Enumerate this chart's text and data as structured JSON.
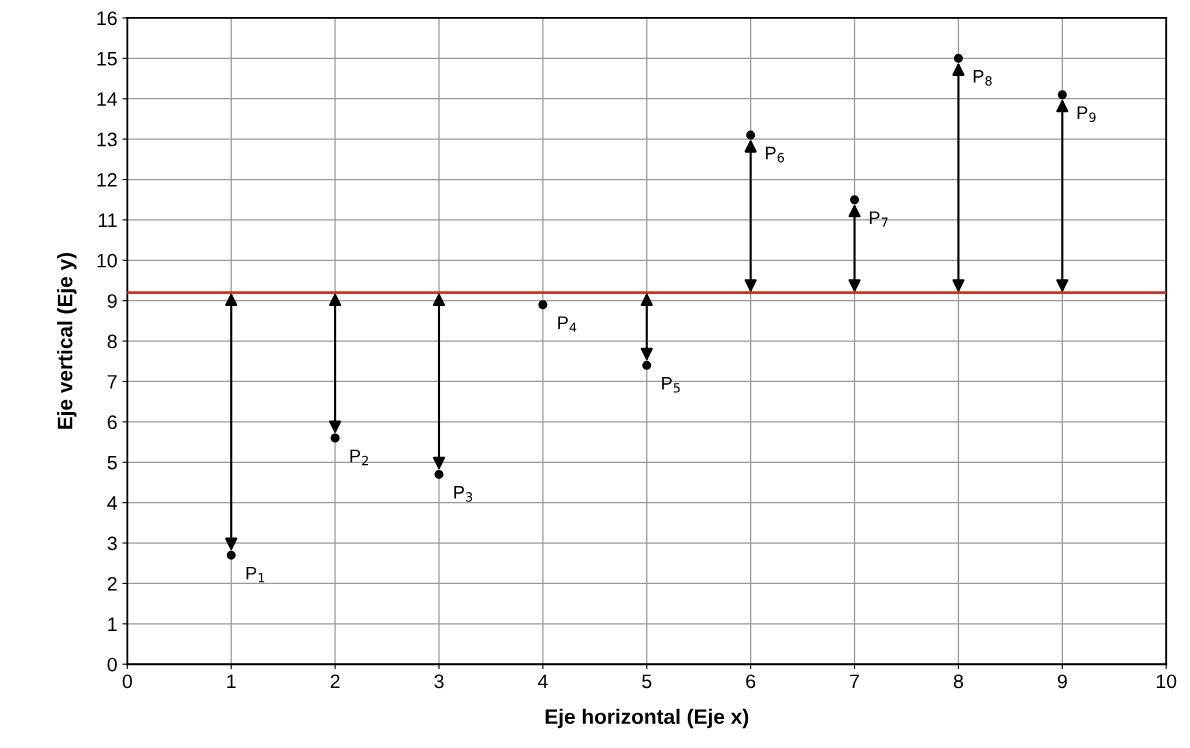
{
  "chart_data": {
    "type": "scatter",
    "xlabel": "Eje horizontal (Eje x)",
    "ylabel": "Eje vertical (Eje y)",
    "x": [
      1,
      2,
      3,
      4,
      5,
      6,
      7,
      8,
      9
    ],
    "series": [
      {
        "color": "#000000",
        "values": [
          2.7,
          5.6,
          4.7,
          8.9,
          7.4,
          13.1,
          11.5,
          15,
          14.1
        ]
      }
    ],
    "marker": "circle",
    "grid": true,
    "xlim": [
      0,
      10
    ],
    "xticks": [
      0,
      1,
      2,
      3,
      4,
      5,
      6,
      7,
      8,
      9,
      10
    ],
    "ylim": [
      0,
      16
    ],
    "yticks": [
      0,
      1,
      2,
      3,
      4,
      5,
      6,
      7,
      8,
      9,
      10,
      11,
      12,
      13,
      14,
      15,
      16
    ],
    "ref_lines": [
      {
        "axis": "y",
        "value": 9.2,
        "color": "#c0392b"
      }
    ],
    "annotations": [
      {
        "text": "P$_{1}$",
        "x": 1,
        "y": 2.7
      },
      {
        "text": "P$_{2}$",
        "x": 2,
        "y": 5.6
      },
      {
        "text": "P$_{3}$",
        "x": 3,
        "y": 4.7
      },
      {
        "text": "P$_{4}$",
        "x": 4,
        "y": 8.9
      },
      {
        "text": "P$_{5}$",
        "x": 5,
        "y": 7.4
      },
      {
        "text": "P$_{6}$",
        "x": 6,
        "y": 13.1
      },
      {
        "text": "P$_{7}$",
        "x": 7,
        "y": 11.5
      },
      {
        "text": "P$_{8}$",
        "x": 8,
        "y": 15
      },
      {
        "text": "P$_{9}$",
        "x": 9,
        "y": 14.1
      }
    ]
  }
}
